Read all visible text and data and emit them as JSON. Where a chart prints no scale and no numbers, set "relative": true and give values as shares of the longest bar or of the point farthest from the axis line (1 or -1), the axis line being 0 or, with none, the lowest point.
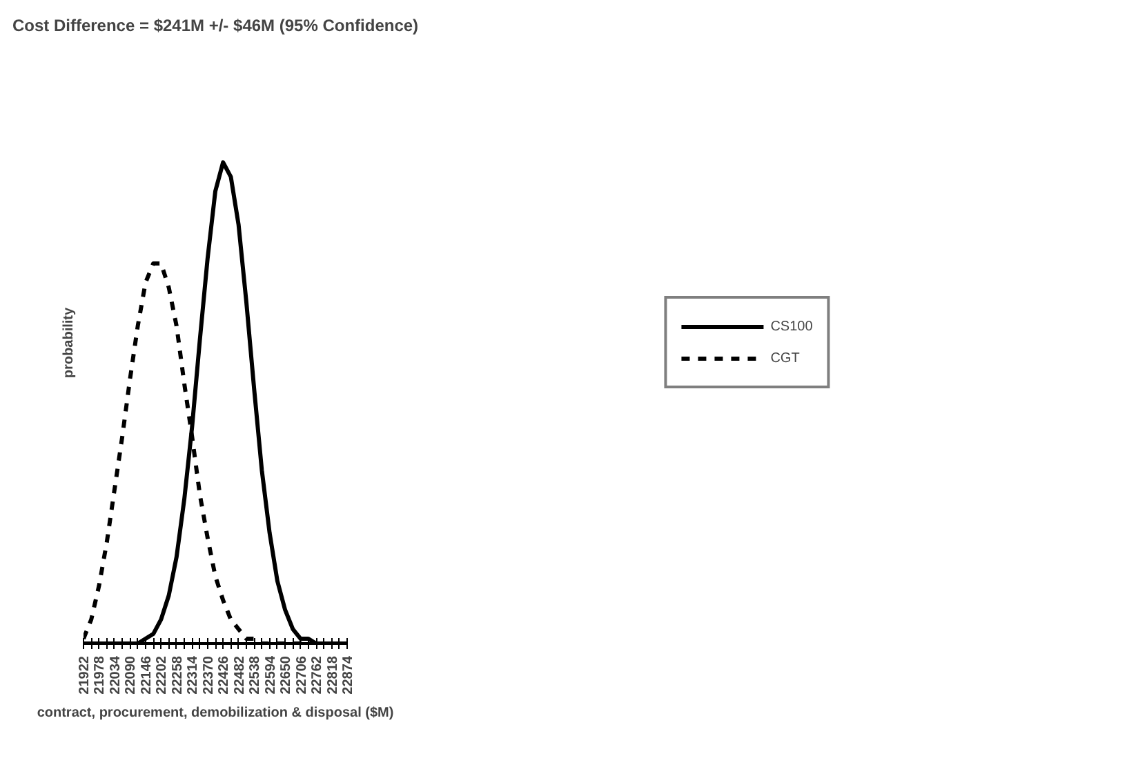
{
  "chart_data": {
    "type": "line",
    "title": "Cost Difference = $241M +/- $46M (95% Confidence)",
    "xlabel": "contract, procurement, demobilization & disposal ($M)",
    "ylabel": "probability",
    "relative": true,
    "xlim": [
      21922,
      22874
    ],
    "xticks": [
      21922,
      {
        "value": 21950,
        "label": null
      },
      21978,
      {
        "value": 22006,
        "label": null
      },
      22034,
      {
        "value": 22062,
        "label": null
      },
      22090,
      {
        "value": 22118,
        "label": null
      },
      22146,
      {
        "value": 22174,
        "label": null
      },
      22202,
      {
        "value": 22230,
        "label": null
      },
      22258,
      {
        "value": 22286,
        "label": null
      },
      22314,
      {
        "value": 22342,
        "label": null
      },
      22370,
      {
        "value": 22398,
        "label": null
      },
      22426,
      {
        "value": 22454,
        "label": null
      },
      22482,
      {
        "value": 22510,
        "label": null
      },
      22538,
      {
        "value": 22566,
        "label": null
      },
      22594,
      {
        "value": 22622,
        "label": null
      },
      22650,
      {
        "value": 22678,
        "label": null
      },
      22706,
      {
        "value": 22734,
        "label": null
      },
      22762,
      {
        "value": 22790,
        "label": null
      },
      22818,
      {
        "value": 22846,
        "label": null
      },
      22874
    ],
    "legend": "right",
    "grid": false,
    "series": [
      {
        "name": "CS100",
        "color": "#000000",
        "line_style": "solid",
        "x": [
          21922,
          22090,
          22118,
          22146,
          22174,
          22202,
          22230,
          22258,
          22286,
          22314,
          22342,
          22370,
          22398,
          22426,
          22454,
          22482,
          22510,
          22538,
          22566,
          22594,
          22622,
          22650,
          22678,
          22706,
          22734,
          22762,
          22790,
          22818,
          22846,
          22874
        ],
        "values": [
          0,
          0,
          0,
          0.01,
          0.02,
          0.05,
          0.1,
          0.18,
          0.3,
          0.45,
          0.63,
          0.8,
          0.94,
          1,
          0.97,
          0.87,
          0.71,
          0.53,
          0.36,
          0.23,
          0.13,
          0.07,
          0.03,
          0.01,
          0.01,
          0,
          0,
          0,
          0,
          0
        ]
      },
      {
        "name": "CGT",
        "color": "#000000",
        "line_style": "dashed",
        "x": [
          21922,
          21950,
          21978,
          22006,
          22034,
          22062,
          22090,
          22118,
          22146,
          22174,
          22202,
          22230,
          22258,
          22286,
          22314,
          22342,
          22370,
          22398,
          22426,
          22454,
          22482,
          22510,
          22538,
          22566,
          22594,
          22650,
          22706,
          22762,
          22818,
          22874
        ],
        "values": [
          0.01,
          0.05,
          0.12,
          0.21,
          0.32,
          0.43,
          0.55,
          0.66,
          0.75,
          0.79,
          0.79,
          0.74,
          0.66,
          0.54,
          0.43,
          0.31,
          0.22,
          0.14,
          0.09,
          0.05,
          0.03,
          0.01,
          0.01,
          0,
          0,
          0,
          0,
          0,
          0,
          0
        ]
      }
    ]
  }
}
